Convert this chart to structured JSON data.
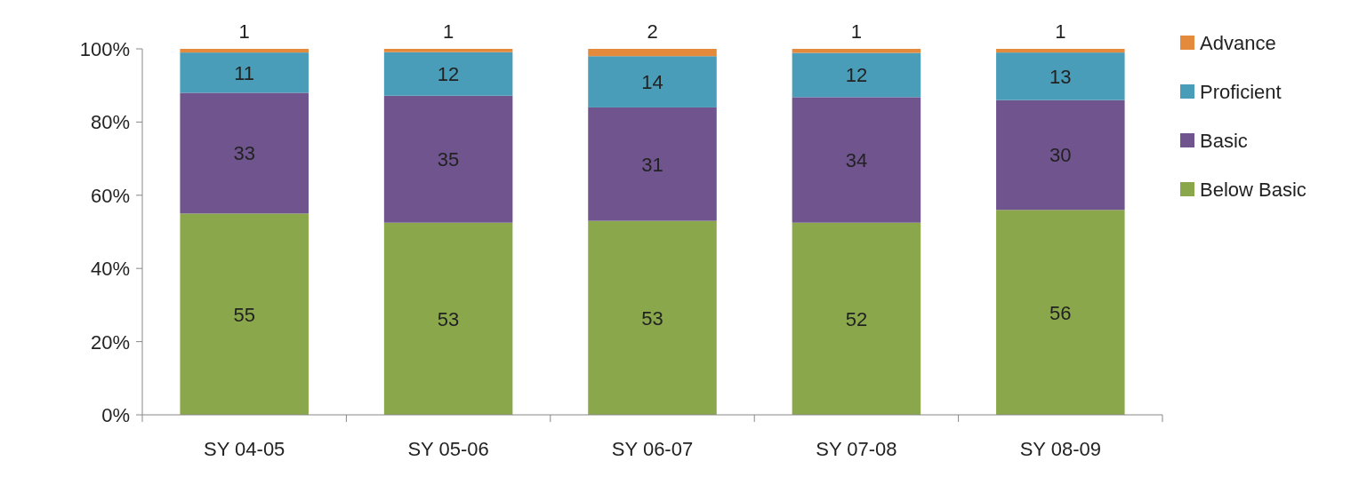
{
  "chart_data": {
    "type": "bar",
    "stacked": true,
    "categories": [
      "SY 04-05",
      "SY 05-06",
      "SY 06-07",
      "SY 07-08",
      "SY 08-09"
    ],
    "series": [
      {
        "name": "Below Basic",
        "color": "#8aa84b",
        "values": [
          55,
          52.5,
          53,
          52.5,
          56
        ],
        "value_labels": [
          "55",
          "53",
          "53",
          "52",
          "56"
        ]
      },
      {
        "name": "Basic",
        "color": "#6f548e",
        "values": [
          33,
          34.7,
          31,
          34.3,
          30
        ],
        "value_labels": [
          "33",
          "35",
          "31",
          "34",
          "30"
        ]
      },
      {
        "name": "Proficient",
        "color": "#4a9db9",
        "values": [
          11,
          11.9,
          14,
          12.1,
          13
        ],
        "value_labels": [
          "11",
          "12",
          "14",
          "12",
          "13"
        ]
      },
      {
        "name": "Advance",
        "color": "#e38a3c",
        "values": [
          1,
          0.9,
          2,
          1.1,
          1
        ],
        "value_labels": [
          "1",
          "1",
          "2",
          "1",
          "1"
        ]
      }
    ],
    "ylim": [
      0,
      100
    ],
    "yticks": [
      {
        "value": 0,
        "label": "0%"
      },
      {
        "value": 20,
        "label": "20%"
      },
      {
        "value": 40,
        "label": "40%"
      },
      {
        "value": 60,
        "label": "60%"
      },
      {
        "value": 80,
        "label": "80%"
      },
      {
        "value": 100,
        "label": "100%"
      }
    ],
    "legend": "right",
    "grid": false
  }
}
